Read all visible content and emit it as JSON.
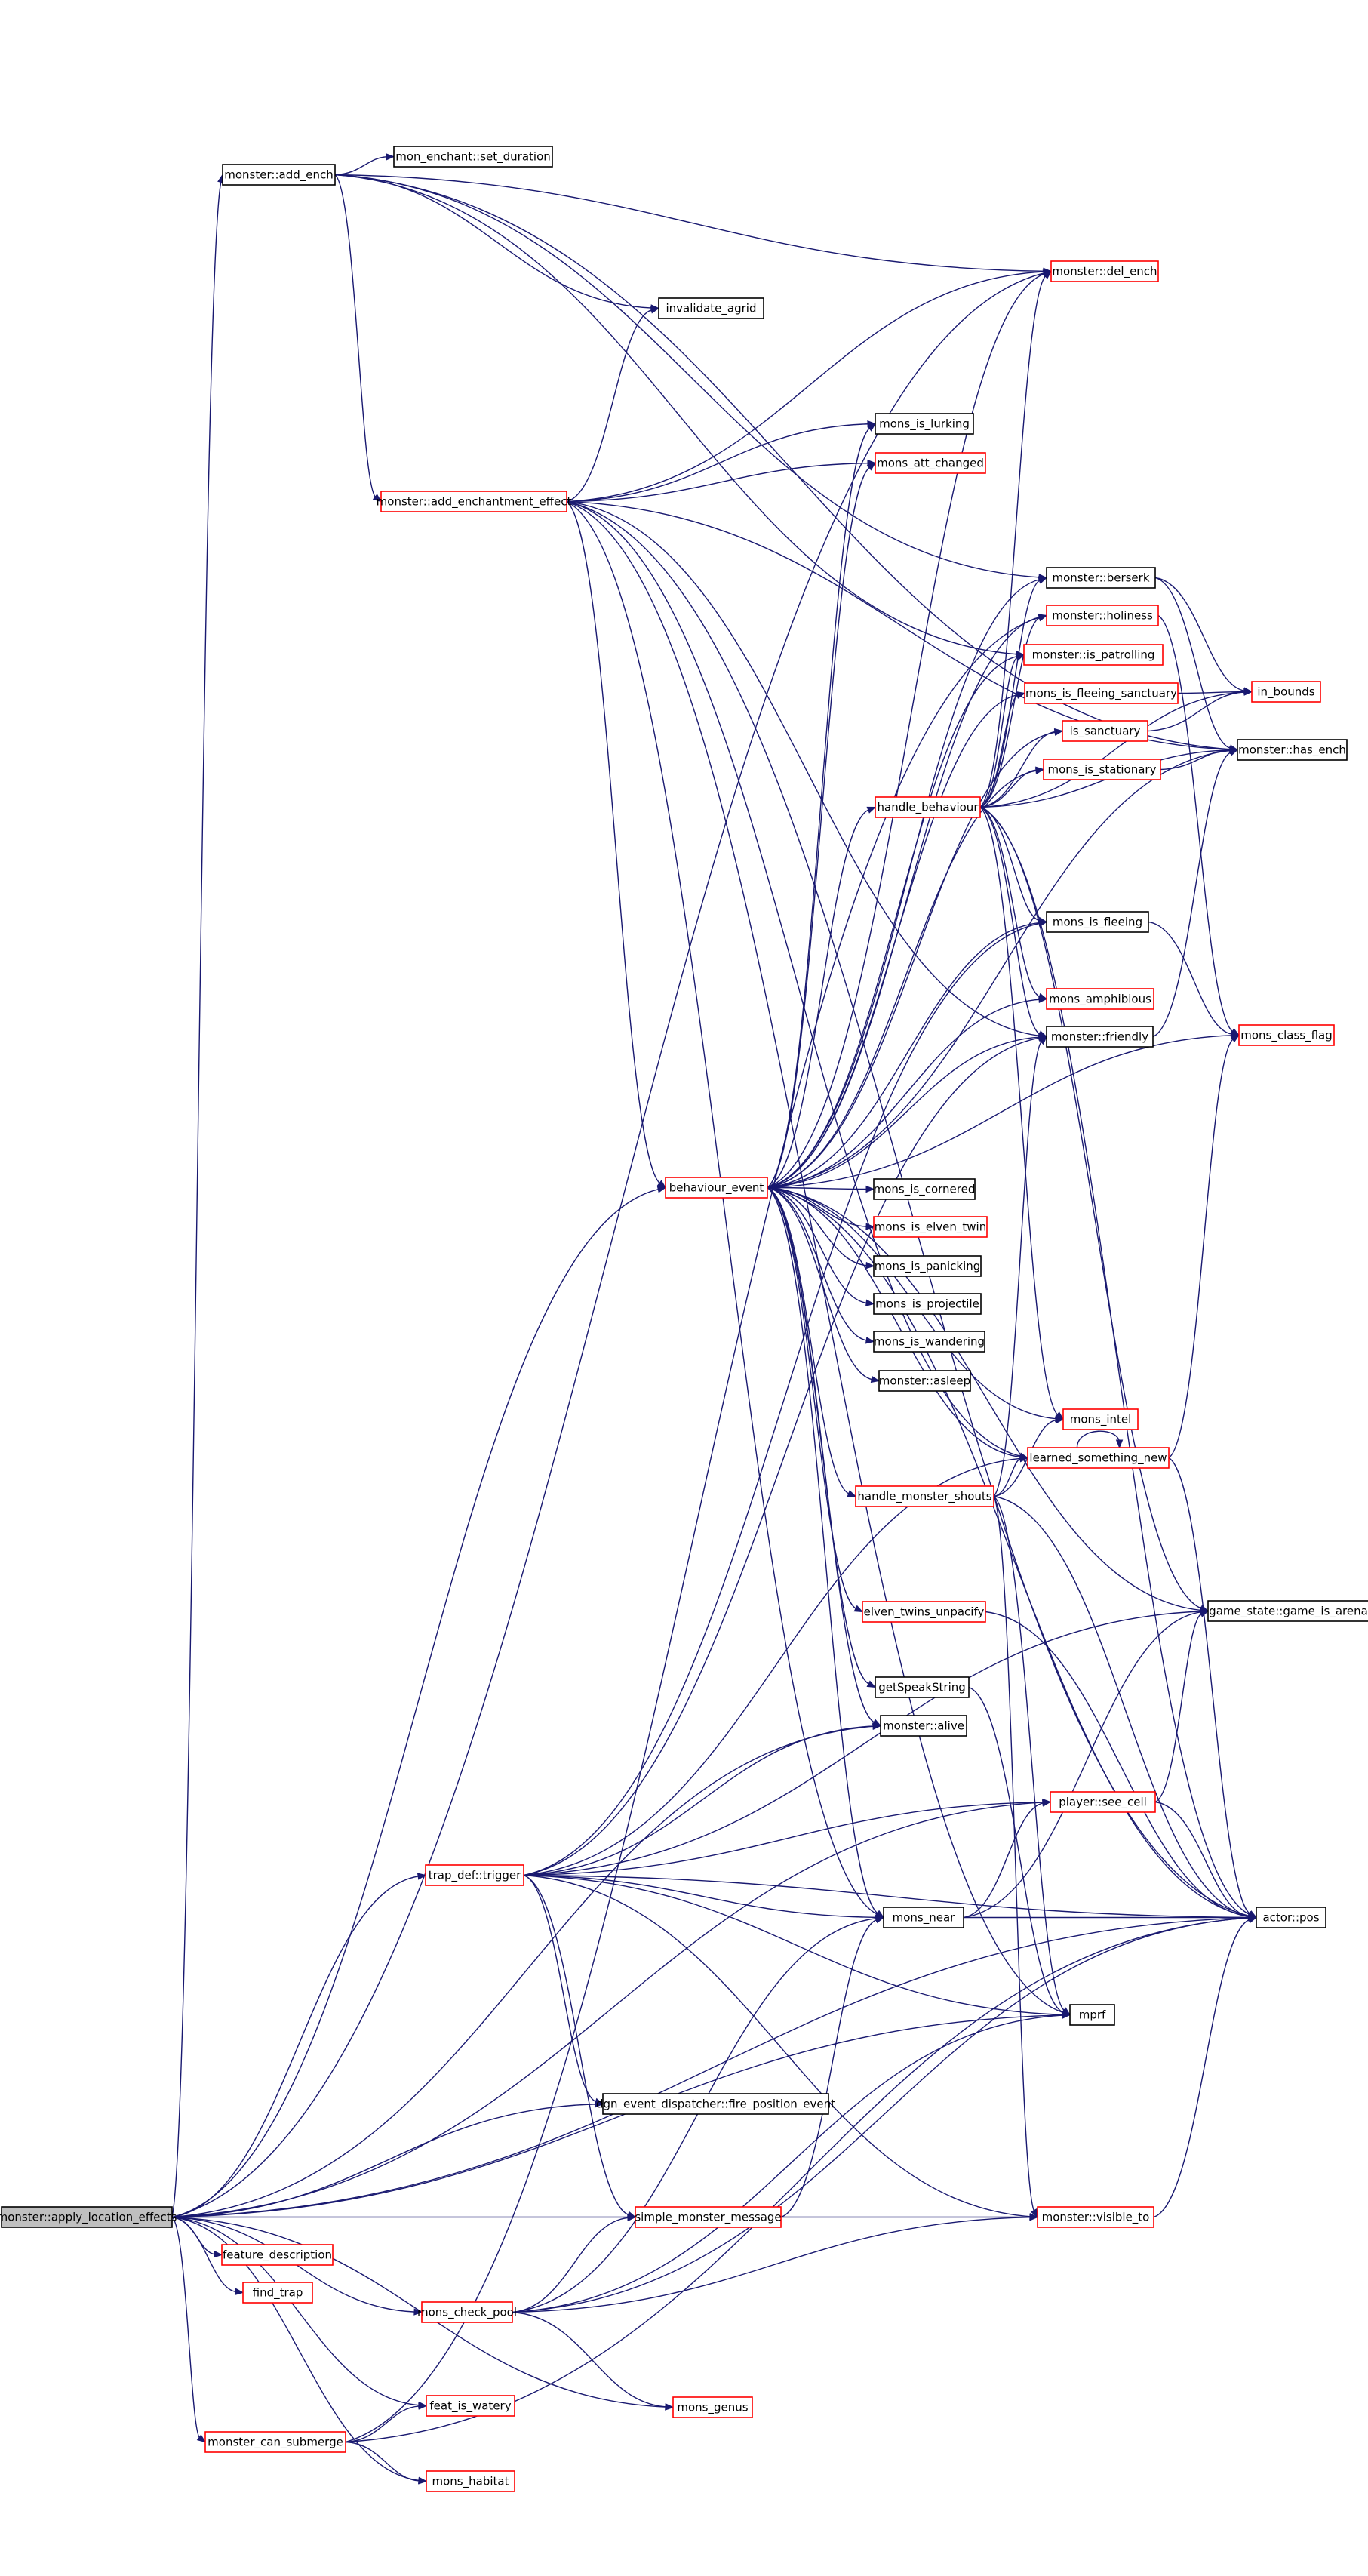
{
  "edge_color": "#191970",
  "highlight_color": "#bfbfbf",
  "nodes": [
    {
      "id": "root",
      "label": "monster::apply_location_effects",
      "style": "root"
    },
    {
      "id": "add_ench",
      "label": "monster::add_ench",
      "style": "black"
    },
    {
      "id": "set_duration",
      "label": "mon_enchant::set_duration",
      "style": "black"
    },
    {
      "id": "del_ench",
      "label": "monster::del_ench",
      "style": "red"
    },
    {
      "id": "invalidate_agrid",
      "label": "invalidate_agrid",
      "style": "black"
    },
    {
      "id": "add_effect",
      "label": "monster::add_enchantment_effect",
      "style": "red"
    },
    {
      "id": "lurking",
      "label": "mons_is_lurking",
      "style": "black"
    },
    {
      "id": "att_changed",
      "label": "mons_att_changed",
      "style": "red"
    },
    {
      "id": "berserk",
      "label": "monster::berserk",
      "style": "black"
    },
    {
      "id": "holiness",
      "label": "monster::holiness",
      "style": "red"
    },
    {
      "id": "patrolling",
      "label": "monster::is_patrolling",
      "style": "red"
    },
    {
      "id": "fleeing_sanct",
      "label": "mons_is_fleeing_sanctuary",
      "style": "red"
    },
    {
      "id": "in_bounds",
      "label": "in_bounds",
      "style": "red"
    },
    {
      "id": "is_sanctuary",
      "label": "is_sanctuary",
      "style": "red"
    },
    {
      "id": "has_ench",
      "label": "monster::has_ench",
      "style": "black"
    },
    {
      "id": "stationary",
      "label": "mons_is_stationary",
      "style": "red"
    },
    {
      "id": "handle_behaviour",
      "label": "handle_behaviour",
      "style": "red"
    },
    {
      "id": "fleeing",
      "label": "mons_is_fleeing",
      "style": "black"
    },
    {
      "id": "amphibious",
      "label": "mons_amphibious",
      "style": "red"
    },
    {
      "id": "class_flag",
      "label": "mons_class_flag",
      "style": "red"
    },
    {
      "id": "friendly",
      "label": "monster::friendly",
      "style": "black"
    },
    {
      "id": "behaviour_event",
      "label": "behaviour_event",
      "style": "red"
    },
    {
      "id": "cornered",
      "label": "mons_is_cornered",
      "style": "black"
    },
    {
      "id": "elven_twin",
      "label": "mons_is_elven_twin",
      "style": "red"
    },
    {
      "id": "panicking",
      "label": "mons_is_panicking",
      "style": "black"
    },
    {
      "id": "projectile",
      "label": "mons_is_projectile",
      "style": "black"
    },
    {
      "id": "wandering",
      "label": "mons_is_wandering",
      "style": "black"
    },
    {
      "id": "asleep",
      "label": "monster::asleep",
      "style": "black"
    },
    {
      "id": "intel",
      "label": "mons_intel",
      "style": "red"
    },
    {
      "id": "learned",
      "label": "learned_something_new",
      "style": "red"
    },
    {
      "id": "shouts",
      "label": "handle_monster_shouts",
      "style": "red"
    },
    {
      "id": "game_is_arena",
      "label": "game_state::game_is_arena",
      "style": "black"
    },
    {
      "id": "unpacify",
      "label": "elven_twins_unpacify",
      "style": "red"
    },
    {
      "id": "speakstring",
      "label": "getSpeakString",
      "style": "black"
    },
    {
      "id": "alive",
      "label": "monster::alive",
      "style": "black"
    },
    {
      "id": "see_cell",
      "label": "player::see_cell",
      "style": "red"
    },
    {
      "id": "trap_trigger",
      "label": "trap_def::trigger",
      "style": "red"
    },
    {
      "id": "mons_near",
      "label": "mons_near",
      "style": "black"
    },
    {
      "id": "actor_pos",
      "label": "actor::pos",
      "style": "black"
    },
    {
      "id": "mprf",
      "label": "mprf",
      "style": "black"
    },
    {
      "id": "fire_event",
      "label": "dgn_event_dispatcher::fire_position_event",
      "style": "black"
    },
    {
      "id": "simple_msg",
      "label": "simple_monster_message",
      "style": "red"
    },
    {
      "id": "visible_to",
      "label": "monster::visible_to",
      "style": "red"
    },
    {
      "id": "feature_desc",
      "label": "feature_description",
      "style": "red"
    },
    {
      "id": "find_trap",
      "label": "find_trap",
      "style": "red"
    },
    {
      "id": "check_pool",
      "label": "mons_check_pool",
      "style": "red"
    },
    {
      "id": "feat_watery",
      "label": "feat_is_watery",
      "style": "red"
    },
    {
      "id": "mons_genus",
      "label": "mons_genus",
      "style": "red"
    },
    {
      "id": "can_submerge",
      "label": "monster_can_submerge",
      "style": "red"
    },
    {
      "id": "mons_habitat",
      "label": "mons_habitat",
      "style": "red"
    }
  ],
  "edges": [
    [
      "root",
      "add_ench"
    ],
    [
      "root",
      "del_ench"
    ],
    [
      "root",
      "behaviour_event"
    ],
    [
      "root",
      "trap_trigger"
    ],
    [
      "root",
      "alive"
    ],
    [
      "root",
      "mprf"
    ],
    [
      "root",
      "fire_event"
    ],
    [
      "root",
      "simple_msg"
    ],
    [
      "root",
      "feature_desc"
    ],
    [
      "root",
      "find_trap"
    ],
    [
      "root",
      "check_pool"
    ],
    [
      "root",
      "can_submerge"
    ],
    [
      "root",
      "feat_watery"
    ],
    [
      "root",
      "mons_habitat"
    ],
    [
      "root",
      "mons_genus"
    ],
    [
      "root",
      "actor_pos"
    ],
    [
      "root",
      "see_cell"
    ],
    [
      "add_ench",
      "set_duration"
    ],
    [
      "add_ench",
      "del_ench"
    ],
    [
      "add_ench",
      "invalidate_agrid"
    ],
    [
      "add_ench",
      "add_effect"
    ],
    [
      "add_ench",
      "berserk"
    ],
    [
      "add_ench",
      "patrolling"
    ],
    [
      "add_ench",
      "has_ench"
    ],
    [
      "add_effect",
      "invalidate_agrid"
    ],
    [
      "add_effect",
      "del_ench"
    ],
    [
      "add_effect",
      "lurking"
    ],
    [
      "add_effect",
      "att_changed"
    ],
    [
      "add_effect",
      "behaviour_event"
    ],
    [
      "add_effect",
      "has_ench"
    ],
    [
      "add_effect",
      "learned"
    ],
    [
      "add_effect",
      "mons_near"
    ],
    [
      "add_effect",
      "actor_pos"
    ],
    [
      "add_effect",
      "mprf"
    ],
    [
      "add_effect",
      "friendly"
    ],
    [
      "behaviour_event",
      "lurking"
    ],
    [
      "behaviour_event",
      "att_changed"
    ],
    [
      "behaviour_event",
      "del_ench"
    ],
    [
      "behaviour_event",
      "berserk"
    ],
    [
      "behaviour_event",
      "holiness"
    ],
    [
      "behaviour_event",
      "patrolling"
    ],
    [
      "behaviour_event",
      "fleeing_sanct"
    ],
    [
      "behaviour_event",
      "is_sanctuary"
    ],
    [
      "behaviour_event",
      "stationary"
    ],
    [
      "behaviour_event",
      "handle_behaviour"
    ],
    [
      "behaviour_event",
      "fleeing"
    ],
    [
      "behaviour_event",
      "amphibious"
    ],
    [
      "behaviour_event",
      "friendly"
    ],
    [
      "behaviour_event",
      "class_flag"
    ],
    [
      "behaviour_event",
      "has_ench"
    ],
    [
      "behaviour_event",
      "cornered"
    ],
    [
      "behaviour_event",
      "elven_twin"
    ],
    [
      "behaviour_event",
      "panicking"
    ],
    [
      "behaviour_event",
      "projectile"
    ],
    [
      "behaviour_event",
      "wandering"
    ],
    [
      "behaviour_event",
      "asleep"
    ],
    [
      "behaviour_event",
      "intel"
    ],
    [
      "behaviour_event",
      "learned"
    ],
    [
      "behaviour_event",
      "shouts"
    ],
    [
      "behaviour_event",
      "unpacify"
    ],
    [
      "behaviour_event",
      "speakstring"
    ],
    [
      "behaviour_event",
      "alive"
    ],
    [
      "behaviour_event",
      "mons_near"
    ],
    [
      "behaviour_event",
      "game_is_arena"
    ],
    [
      "behaviour_event",
      "actor_pos"
    ],
    [
      "handle_behaviour",
      "berserk"
    ],
    [
      "handle_behaviour",
      "holiness"
    ],
    [
      "handle_behaviour",
      "patrolling"
    ],
    [
      "handle_behaviour",
      "fleeing_sanct"
    ],
    [
      "handle_behaviour",
      "is_sanctuary"
    ],
    [
      "handle_behaviour",
      "stationary"
    ],
    [
      "handle_behaviour",
      "has_ench"
    ],
    [
      "handle_behaviour",
      "fleeing"
    ],
    [
      "handle_behaviour",
      "amphibious"
    ],
    [
      "handle_behaviour",
      "friendly"
    ],
    [
      "handle_behaviour",
      "intel"
    ],
    [
      "handle_behaviour",
      "in_bounds"
    ],
    [
      "handle_behaviour",
      "game_is_arena"
    ],
    [
      "handle_behaviour",
      "actor_pos"
    ],
    [
      "handle_behaviour",
      "del_ench"
    ],
    [
      "berserk",
      "has_ench"
    ],
    [
      "berserk",
      "in_bounds"
    ],
    [
      "fleeing_sanct",
      "in_bounds"
    ],
    [
      "is_sanctuary",
      "in_bounds"
    ],
    [
      "stationary",
      "has_ench"
    ],
    [
      "friendly",
      "has_ench"
    ],
    [
      "fleeing",
      "class_flag"
    ],
    [
      "holiness",
      "class_flag"
    ],
    [
      "shouts",
      "friendly"
    ],
    [
      "shouts",
      "learned"
    ],
    [
      "shouts",
      "intel"
    ],
    [
      "shouts",
      "mprf"
    ],
    [
      "shouts",
      "visible_to"
    ],
    [
      "shouts",
      "actor_pos"
    ],
    [
      "learned",
      "class_flag"
    ],
    [
      "learned",
      "actor_pos"
    ],
    [
      "learned",
      "learned"
    ],
    [
      "unpacify",
      "actor_pos"
    ],
    [
      "speakstring",
      "mprf"
    ],
    [
      "trap_trigger",
      "fleeing"
    ],
    [
      "trap_trigger",
      "friendly"
    ],
    [
      "trap_trigger",
      "alive"
    ],
    [
      "trap_trigger",
      "learned"
    ],
    [
      "trap_trigger",
      "see_cell"
    ],
    [
      "trap_trigger",
      "game_is_arena"
    ],
    [
      "trap_trigger",
      "mprf"
    ],
    [
      "trap_trigger",
      "fire_event"
    ],
    [
      "trap_trigger",
      "simple_msg"
    ],
    [
      "trap_trigger",
      "visible_to"
    ],
    [
      "trap_trigger",
      "actor_pos"
    ],
    [
      "trap_trigger",
      "mons_near"
    ],
    [
      "mons_near",
      "see_cell"
    ],
    [
      "mons_near",
      "actor_pos"
    ],
    [
      "mons_near",
      "game_is_arena"
    ],
    [
      "see_cell",
      "game_is_arena"
    ],
    [
      "see_cell",
      "actor_pos"
    ],
    [
      "visible_to",
      "actor_pos"
    ],
    [
      "simple_msg",
      "mons_near"
    ],
    [
      "simple_msg",
      "visible_to"
    ],
    [
      "check_pool",
      "simple_msg"
    ],
    [
      "check_pool",
      "mons_near"
    ],
    [
      "check_pool",
      "mprf"
    ],
    [
      "check_pool",
      "mons_genus"
    ],
    [
      "check_pool",
      "actor_pos"
    ],
    [
      "check_pool",
      "visible_to"
    ],
    [
      "can_submerge",
      "feat_watery"
    ],
    [
      "can_submerge",
      "mons_habitat"
    ],
    [
      "can_submerge",
      "actor_pos"
    ],
    [
      "can_submerge",
      "holiness"
    ]
  ]
}
